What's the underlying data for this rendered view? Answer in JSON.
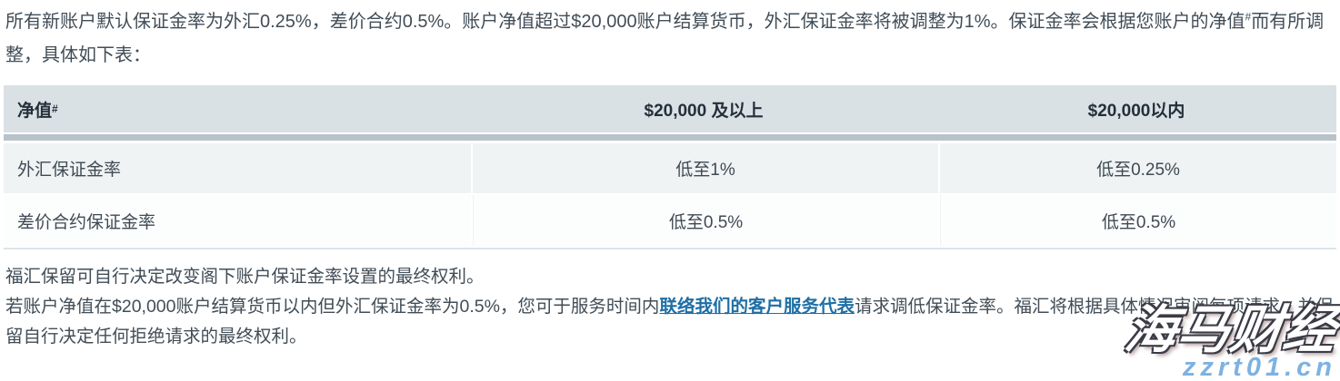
{
  "intro": {
    "part1": "所有新账户默认保证金率为外汇0.25%，差价合约0.5%。账户净值超过$20,000账户结算货币，外汇保证金率将被调整为1%。保证金率会根据您账户的净值",
    "sup": "#",
    "part2": "而有所调整，具体如下表："
  },
  "table": {
    "headers": [
      {
        "text": "净值",
        "sup": "#"
      },
      {
        "text": "$20,000 及以上"
      },
      {
        "text": "$20,000以内"
      }
    ],
    "rows": [
      {
        "cells": [
          "外汇保证金率",
          "低至1%",
          "低至0.25%"
        ]
      },
      {
        "cells": [
          "差价合约保证金率",
          "低至0.5%",
          "低至0.5%"
        ]
      }
    ]
  },
  "footer": {
    "p1": "福汇保留可自行决定改变阁下账户保证金率设置的最终权利。",
    "p2_before_link": "若账户净值在$20,000账户结算货币以内但外汇保证金率为0.5%，您可于服务时间内",
    "p2_link": "联络我们的客户服务代表",
    "p2_after_link": "请求调低保证金率。福汇将根据具体情况审阅每项请求，并保留自行决定任何拒绝请求的最终权利。"
  },
  "watermark": {
    "brand": "海马财经",
    "site": "zzrt01.cn"
  },
  "colors": {
    "body_text": "#414d57",
    "header_bg": "#dae1e5",
    "header_band": "#b7c3c9",
    "row1_bg": "#eff3f3",
    "row2_bg": "#fcfdfd",
    "table_bottom_border": "#dce4e7",
    "link_blue": "#1e6fa5",
    "watermark_site_blue": "#7db2e2",
    "watermark_outline": "#3a3b46"
  }
}
